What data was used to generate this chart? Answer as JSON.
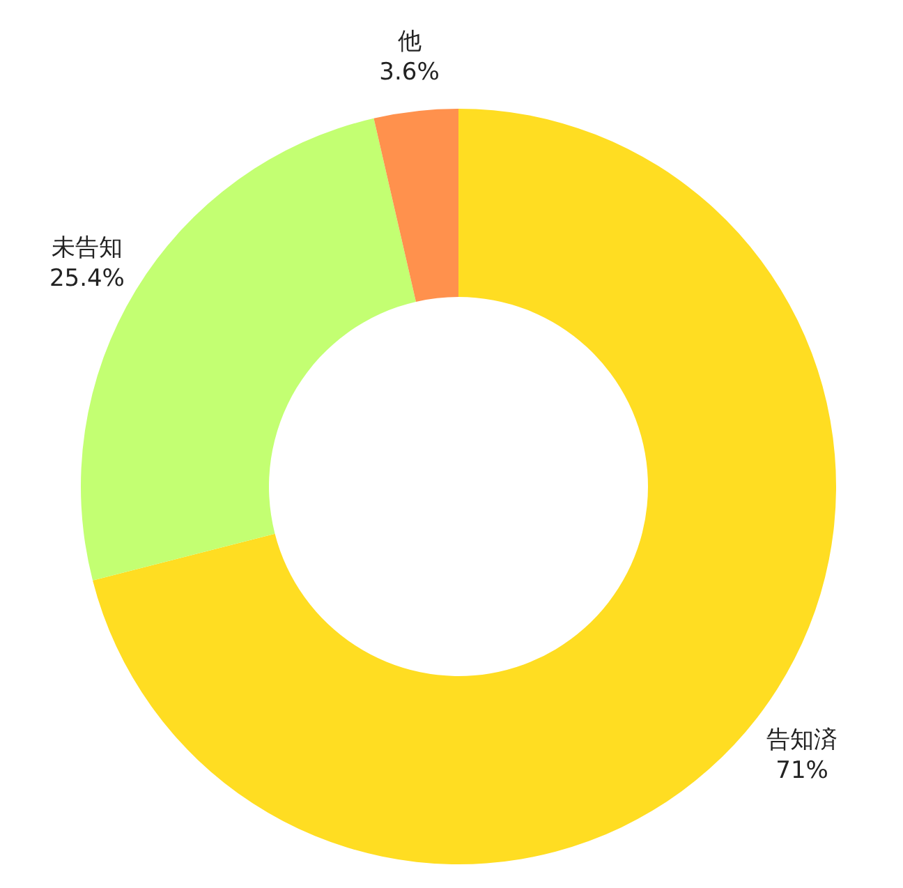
{
  "chart_data": {
    "type": "donut",
    "categories": [
      "告知済",
      "未告知",
      "他"
    ],
    "values": [
      71,
      25.4,
      3.6
    ],
    "colors": [
      "#ffdd22",
      "#c3ff72",
      "#ff914d"
    ],
    "value_labels": [
      "71%",
      "25.4%",
      "3.6%"
    ]
  }
}
